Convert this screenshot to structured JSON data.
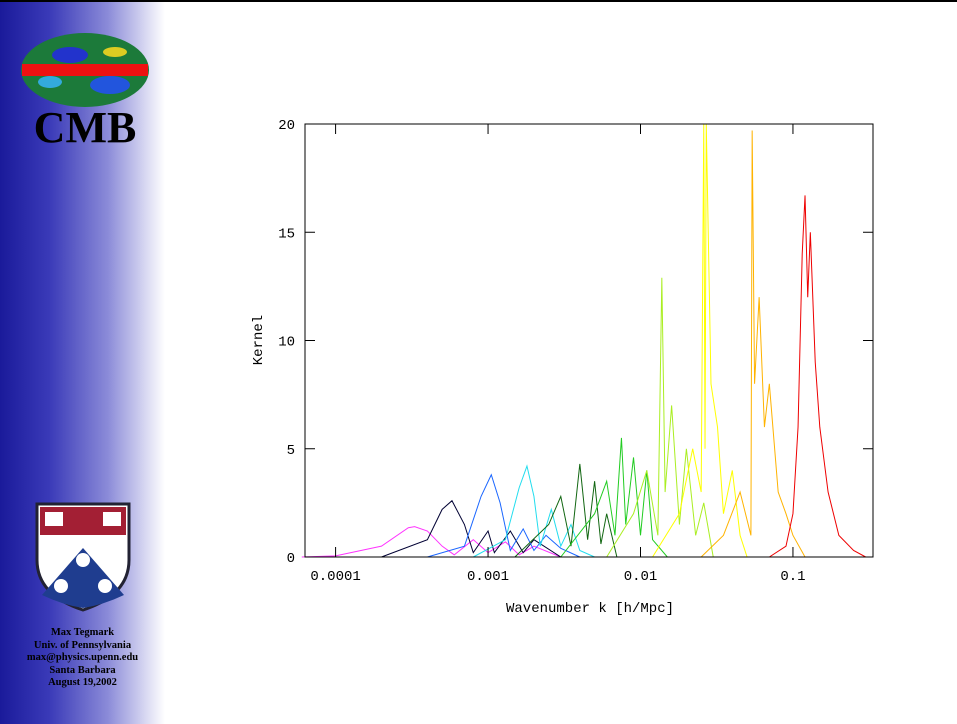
{
  "sidebar": {
    "logo_text": "CMB",
    "lines": [
      "Max Tegmark",
      "Univ. of Pennsylvania",
      "max@physics.upenn.edu",
      "Santa Barbara",
      "August 19,2002"
    ]
  },
  "chart_data": {
    "type": "line",
    "xlabel": "Wavenumber k [h/Mpc]",
    "ylabel": "Kernel",
    "xscale": "log",
    "xlim": [
      6.3e-05,
      0.335
    ],
    "ylim": [
      0,
      20
    ],
    "xticks": [
      0.0001,
      0.001,
      0.01,
      0.1
    ],
    "yticks": [
      0,
      5,
      10,
      15,
      20
    ],
    "series": [
      {
        "color": "#ff33ff",
        "x": [
          6e-05,
          0.0001,
          0.0002,
          0.0003,
          0.00033,
          0.0004,
          0.0005,
          0.0006,
          0.0008,
          0.001,
          0.0013,
          0.0016,
          0.002,
          0.003
        ],
        "values": [
          0,
          0.05,
          0.5,
          1.35,
          1.4,
          1.2,
          0.5,
          0.1,
          0.8,
          0.2,
          0.7,
          0.1,
          0.5,
          0
        ]
      },
      {
        "color": "#000033",
        "x": [
          0.0002,
          0.0004,
          0.0005,
          0.00058,
          0.0007,
          0.0008,
          0.001,
          0.0011,
          0.0014,
          0.0017,
          0.002,
          0.003
        ],
        "values": [
          0,
          0.8,
          2.2,
          2.6,
          1.5,
          0.2,
          1.2,
          0.2,
          1.2,
          0.2,
          0.8,
          0
        ]
      },
      {
        "color": "#1a66ff",
        "x": [
          0.0004,
          0.0007,
          0.0009,
          0.00105,
          0.0012,
          0.0014,
          0.0017,
          0.002,
          0.0024,
          0.003,
          0.004
        ],
        "values": [
          0,
          0.5,
          2.8,
          3.8,
          2.5,
          0.3,
          1.3,
          0.3,
          1.0,
          0.4,
          0
        ]
      },
      {
        "color": "#22ddee",
        "x": [
          0.0008,
          0.0013,
          0.0016,
          0.0018,
          0.002,
          0.0022,
          0.0026,
          0.003,
          0.0035,
          0.004,
          0.005
        ],
        "values": [
          0,
          0.8,
          3.2,
          4.2,
          2.8,
          0.5,
          2.2,
          0.5,
          1.5,
          0.3,
          0
        ]
      },
      {
        "color": "#116611",
        "x": [
          0.0015,
          0.0025,
          0.003,
          0.0035,
          0.004,
          0.0045,
          0.005,
          0.0055,
          0.006,
          0.007
        ],
        "values": [
          0,
          1.5,
          2.8,
          0.5,
          4.3,
          0.8,
          3.5,
          0.6,
          2.0,
          0
        ]
      },
      {
        "color": "#22cc22",
        "x": [
          0.003,
          0.005,
          0.006,
          0.0068,
          0.0075,
          0.008,
          0.009,
          0.01,
          0.011,
          0.012,
          0.015
        ],
        "values": [
          0,
          2.0,
          3.5,
          1.0,
          5.5,
          1.5,
          4.6,
          1.0,
          4.0,
          0.8,
          0
        ]
      },
      {
        "color": "#aaee22",
        "x": [
          0.006,
          0.009,
          0.011,
          0.013,
          0.0138,
          0.0145,
          0.016,
          0.018,
          0.02,
          0.023,
          0.026,
          0.03
        ],
        "values": [
          0,
          2,
          4,
          1,
          12.9,
          3,
          7,
          1.5,
          5,
          1,
          2.5,
          0
        ]
      },
      {
        "color": "#ffff00",
        "x": [
          0.012,
          0.018,
          0.022,
          0.025,
          0.026,
          0.0265,
          0.027,
          0.029,
          0.032,
          0.035,
          0.04,
          0.045,
          0.05
        ],
        "values": [
          0,
          2,
          5,
          3,
          20,
          5,
          20,
          8,
          6,
          2,
          4,
          1,
          0
        ]
      },
      {
        "color": "#ffb300",
        "x": [
          0.025,
          0.035,
          0.045,
          0.053,
          0.054,
          0.056,
          0.06,
          0.065,
          0.07,
          0.08,
          0.09,
          0.1,
          0.12
        ],
        "values": [
          0,
          1,
          3,
          1,
          19.7,
          8,
          12,
          6,
          8,
          3,
          2,
          1,
          0
        ]
      },
      {
        "color": "#ee0000",
        "x": [
          0.07,
          0.09,
          0.1,
          0.108,
          0.115,
          0.12,
          0.125,
          0.13,
          0.14,
          0.15,
          0.17,
          0.2,
          0.25,
          0.3
        ],
        "values": [
          0,
          0.5,
          2,
          6,
          14,
          16.7,
          12,
          15,
          9,
          6,
          3,
          1,
          0.3,
          0
        ]
      }
    ]
  }
}
